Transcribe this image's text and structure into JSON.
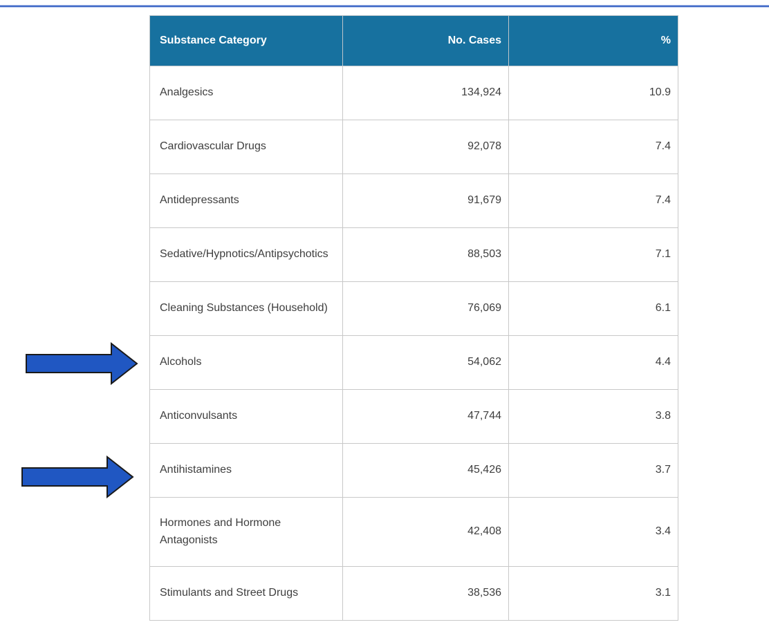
{
  "page": {
    "background": "#FFFFFF",
    "top_rule_color": "#3E68C6"
  },
  "table": {
    "header_bg": "#17719F",
    "header_text_color": "#FFFFFF",
    "columns": [
      {
        "label": "Substance Category",
        "align": "left"
      },
      {
        "label": "No. Cases",
        "align": "right"
      },
      {
        "label": "%",
        "align": "right"
      }
    ],
    "rows": [
      {
        "category": "Analgesics",
        "cases": "134,924",
        "pct": "10.9"
      },
      {
        "category": "Cardiovascular Drugs",
        "cases": "92,078",
        "pct": "7.4"
      },
      {
        "category": "Antidepressants",
        "cases": "91,679",
        "pct": "7.4"
      },
      {
        "category": "Sedative/Hypnotics/Antipsychotics",
        "cases": "88,503",
        "pct": "7.1"
      },
      {
        "category": "Cleaning Substances (Household)",
        "cases": "76,069",
        "pct": "6.1"
      },
      {
        "category": "Alcohols",
        "cases": "54,062",
        "pct": "4.4"
      },
      {
        "category": "Anticonvulsants",
        "cases": "47,744",
        "pct": "3.8"
      },
      {
        "category": "Antihistamines",
        "cases": "45,426",
        "pct": "3.7"
      },
      {
        "category": "Hormones and Hormone Antagonists",
        "cases": "42,408",
        "pct": "3.4"
      },
      {
        "category": "Stimulants and Street Drugs",
        "cases": "38,536",
        "pct": "3.1"
      }
    ]
  },
  "annotations": {
    "arrows": [
      {
        "points_to": "Alcohols",
        "fill": "#2057C2",
        "outline": "#1A1A1A"
      },
      {
        "points_to": "Antihistamines",
        "fill": "#2057C2",
        "outline": "#1A1A1A"
      }
    ]
  }
}
